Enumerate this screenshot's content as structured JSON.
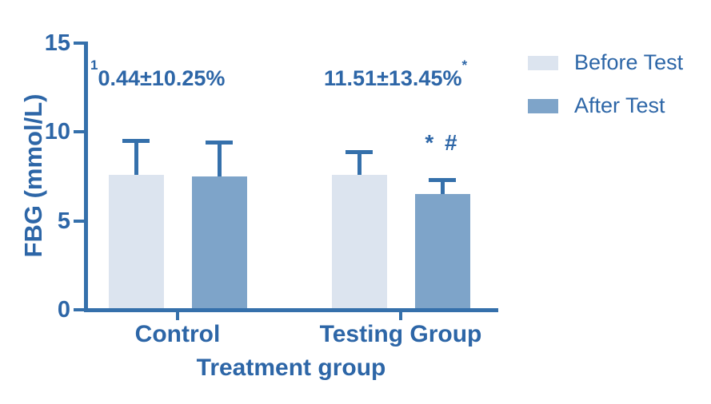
{
  "colors": {
    "text": "#2d66a7",
    "axis": "#3570ab",
    "series_fills": [
      "#dce4ef",
      "#7ea4c9"
    ],
    "background": "#ffffff"
  },
  "chart_data": {
    "type": "bar",
    "categories": [
      "Control",
      "Testing Group"
    ],
    "series": [
      {
        "name": "Before Test",
        "values": [
          7.6,
          7.6
        ],
        "errors": [
          2.0,
          1.4
        ]
      },
      {
        "name": "After Test",
        "values": [
          7.5,
          6.5
        ],
        "errors": [
          2.0,
          0.9
        ]
      }
    ],
    "error_bars": "upper only, capped",
    "xlabel": "Treatment group",
    "ylabel": "FBG (mmol/L)",
    "ylim": [
      0,
      15
    ],
    "yticks": [
      0,
      5,
      10,
      15
    ],
    "grid": false,
    "legend_position": "outside upper right",
    "annotations": [
      {
        "target": "Control group",
        "sup_before": "1",
        "text": "0.44±10.25%",
        "sup_after": ""
      },
      {
        "target": "Testing group",
        "sup_before": "",
        "text": "11.51±13.45%",
        "sup_after": "*"
      },
      {
        "target": "Testing After bar",
        "text": "* #"
      }
    ]
  }
}
